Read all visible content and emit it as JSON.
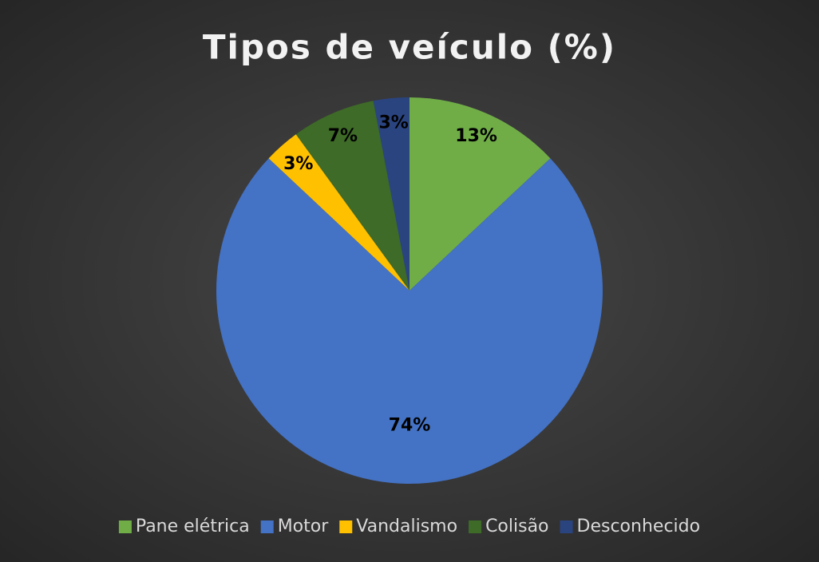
{
  "chart_data": {
    "type": "pie",
    "title": "Tipos de veículo (%)",
    "categories": [
      "Pane elétrica",
      "Motor",
      "Vandalismo",
      "Colisão",
      "Desconhecido"
    ],
    "values": [
      13,
      74,
      3,
      7,
      3
    ],
    "value_labels": [
      "13%",
      "74%",
      "3%",
      "7%",
      "3%"
    ],
    "colors": [
      "#70ad47",
      "#4472c4",
      "#ffc000",
      "#3e6b27",
      "#2a4480"
    ],
    "legend": "bottom"
  }
}
